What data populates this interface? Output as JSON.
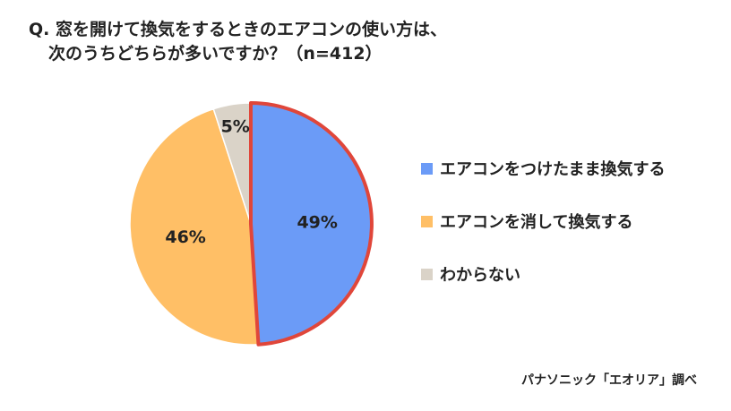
{
  "title": {
    "line1": "Q. 窓を開けて換気をするときのエアコンの使い方は、",
    "line2": "次のうちどちらが多いですか？（n=412）"
  },
  "chart_data": {
    "type": "pie",
    "categories": [
      "エアコンをつけたまま換気する",
      "エアコンを消して換気する",
      "わからない"
    ],
    "values": [
      49,
      46,
      5
    ],
    "labels": [
      "49%",
      "46%",
      "5%"
    ],
    "colors": [
      "#6B9BF7",
      "#FFBF66",
      "#DAD3C8"
    ],
    "highlight_index": 0,
    "highlight_color": "#E0463A",
    "legend_position": "right"
  },
  "source": "パナソニック「エオリア」調べ"
}
